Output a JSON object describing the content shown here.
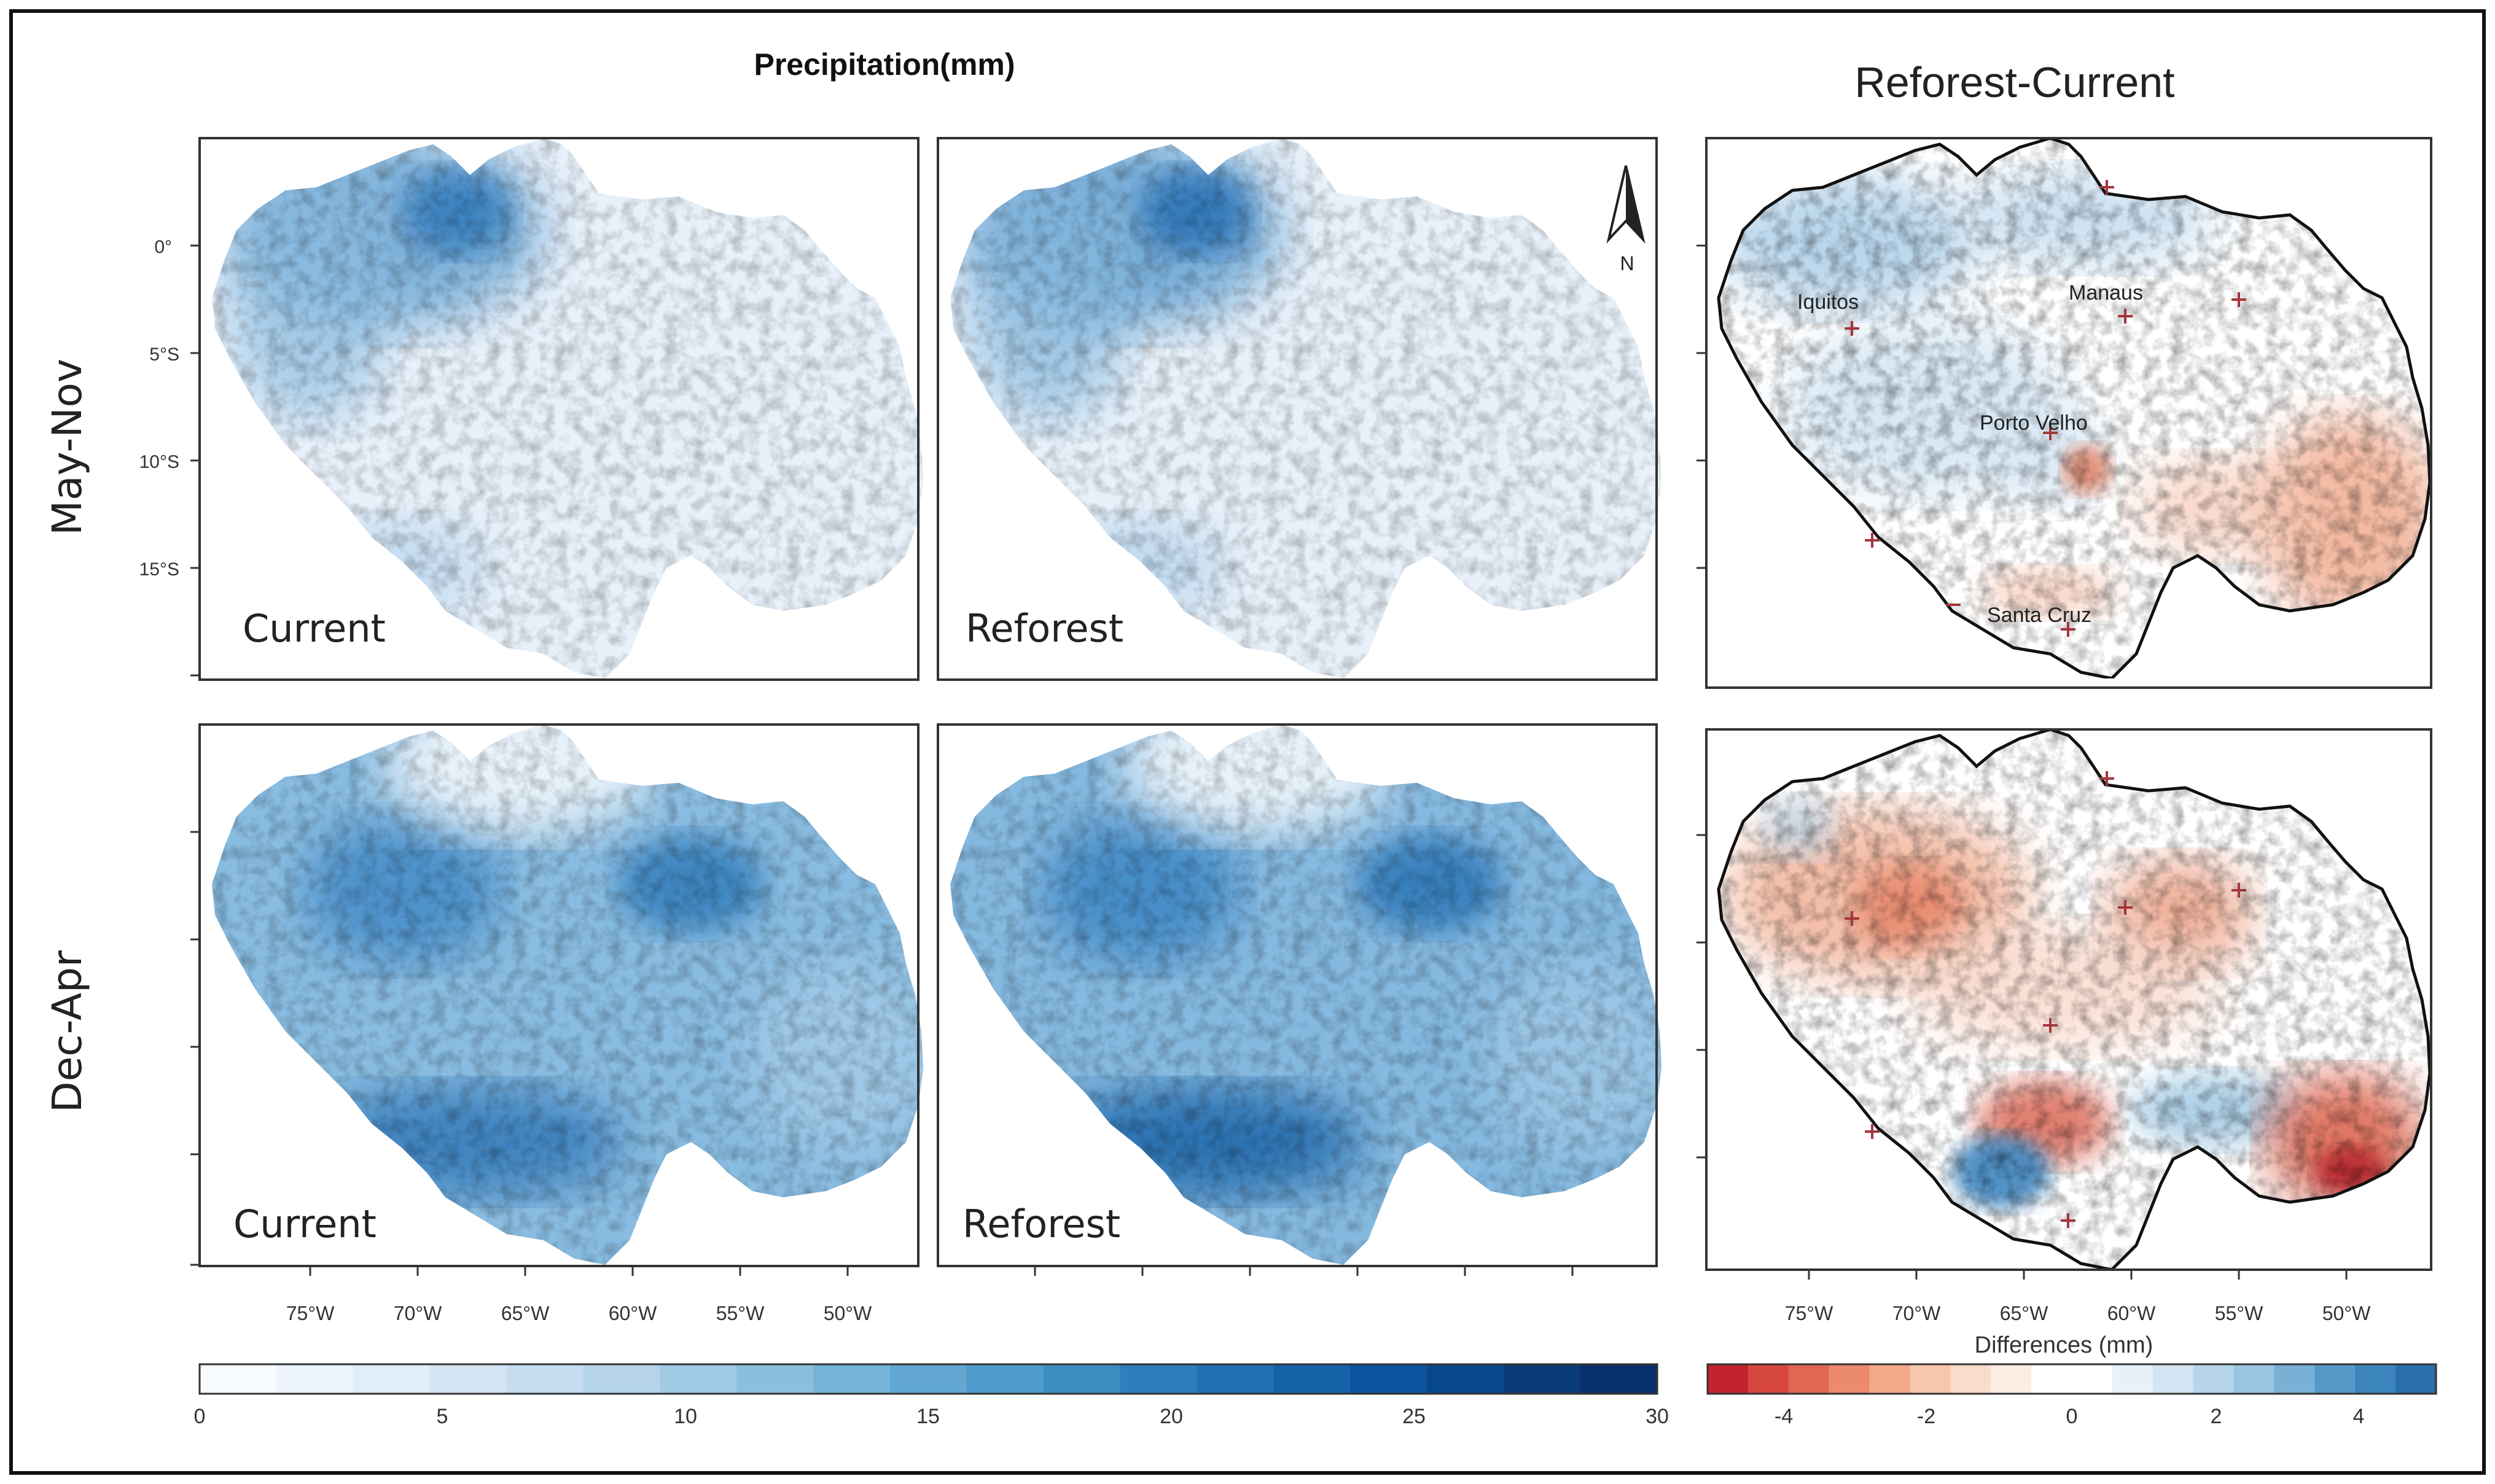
{
  "main_title": "Precipitation(mm)",
  "diff_title": "Reforest-Current",
  "row_labels": [
    "May-Nov",
    "Dec-Apr"
  ],
  "panel_labels": {
    "r0c0": "Current",
    "r0c1": "Reforest",
    "r1c0": "Current",
    "r1c1": "Reforest"
  },
  "north_label": "N",
  "lat_ticks": [
    "0°",
    "5°S",
    "10°S",
    "15°S"
  ],
  "lon_ticks": [
    "75°W",
    "70°W",
    "65°W",
    "60°W",
    "55°W",
    "50°W"
  ],
  "cities": [
    "Iquitos",
    "Manaus",
    "Porto Velho",
    "Santa Cruz"
  ],
  "colorbar_precip": {
    "ticks": [
      "0",
      "5",
      "10",
      "15",
      "20",
      "25",
      "30"
    ],
    "colors": [
      "#f7fbff",
      "#edf4fc",
      "#e1edf8",
      "#d4e5f4",
      "#c6dcef",
      "#b5d4e9",
      "#a1cae4",
      "#8bbfde",
      "#75b3d8",
      "#62a7d2",
      "#4f9bcb",
      "#3d8dc3",
      "#2d7ebb",
      "#206fb2",
      "#1562a9",
      "#0c549d",
      "#08478c",
      "#083a77",
      "#08306b"
    ]
  },
  "colorbar_diff": {
    "label": "Differences (mm)",
    "ticks": [
      "-4",
      "-2",
      "0",
      "2",
      "4"
    ],
    "colors": [
      "#c2242d",
      "#d5473f",
      "#e06852",
      "#ec8a6d",
      "#f4a98b",
      "#f8c5ad",
      "#fadccc",
      "#fcede3",
      "#ffffff",
      "#ffffff",
      "#e8f0f8",
      "#d3e4f2",
      "#b7d5ea",
      "#9ac5e1",
      "#79b1d6",
      "#5599c8",
      "#3c84bc",
      "#2a6fae"
    ]
  }
}
